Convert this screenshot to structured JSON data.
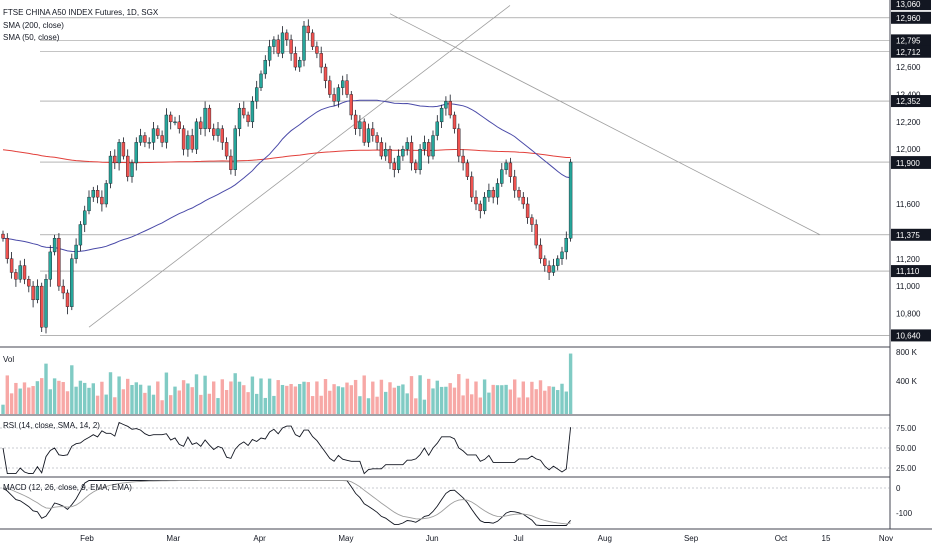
{
  "header": {
    "title": "FTSE CHINA A50 INDEX Futures, 1D, SGX",
    "sma200": "SMA (200, close)",
    "sma50": "SMA (50, close)"
  },
  "panels": {
    "vol_label": "Vol",
    "rsi_label": "RSI (14, close, SMA, 14, 2)",
    "macd_label": "MACD (12, 26, close, 9, EMA, EMA)"
  },
  "colors": {
    "up": "#26a69a",
    "down": "#ef5350",
    "vol_up": "#80cbc4",
    "vol_down": "#f7a8a6",
    "sma200": "#e2403b",
    "sma50": "#4a4aa8",
    "trend": "#9e9e9e"
  },
  "chart_data": {
    "type": "candlestick",
    "title": "FTSE CHINA A50 INDEX Futures, 1D, SGX",
    "x_ticks": [
      "Feb",
      "Mar",
      "Apr",
      "May",
      "Jun",
      "Jul",
      "Aug",
      "Sep",
      "Oct",
      "15",
      "Nov"
    ],
    "price_ticks": [
      "13,060",
      "12,960",
      "12,795",
      "12,712",
      "12,600",
      "12,400",
      "12,352",
      "12,200",
      "12,000",
      "11,906",
      "11,900",
      "11,600",
      "11,375",
      "11,200",
      "11,110",
      "11,000",
      "10,800",
      "10,640"
    ],
    "tags_highlighted": [
      "13,060",
      "12,960",
      "12,795",
      "12,712",
      "12,352",
      "11,906",
      "11,900",
      "11,375",
      "11,110",
      "10,640"
    ],
    "horizontal_levels": [
      12960,
      12795,
      12712,
      12352,
      11906,
      11375,
      11110,
      10640
    ],
    "price_range": [
      10570,
      13090
    ],
    "closes": [
      11350,
      11200,
      11100,
      11050,
      11150,
      11050,
      11000,
      10900,
      11000,
      10700,
      11050,
      11250,
      11350,
      11000,
      10950,
      10850,
      11200,
      11300,
      11450,
      11550,
      11650,
      11700,
      11650,
      11600,
      11750,
      11950,
      11900,
      12050,
      11950,
      11800,
      11900,
      12050,
      12100,
      12050,
      12050,
      12150,
      12100,
      12050,
      12250,
      12200,
      12200,
      12150,
      12000,
      12100,
      12000,
      12200,
      12150,
      12300,
      12150,
      12100,
      12150,
      12050,
      11950,
      11850,
      12150,
      12300,
      12250,
      12200,
      12350,
      12450,
      12550,
      12650,
      12750,
      12800,
      12700,
      12850,
      12800,
      12700,
      12600,
      12650,
      12900,
      12850,
      12750,
      12700,
      12600,
      12500,
      12400,
      12350,
      12450,
      12500,
      12400,
      12250,
      12150,
      12200,
      12050,
      12150,
      12100,
      12050,
      11950,
      12000,
      11900,
      11850,
      11950,
      12000,
      12050,
      11900,
      11850,
      12000,
      12050,
      11950,
      12100,
      12200,
      12300,
      12350,
      12250,
      12150,
      11950,
      11900,
      11800,
      11650,
      11600,
      11550,
      11650,
      11700,
      11650,
      11750,
      11850,
      11900,
      11800,
      11700,
      11650,
      11600,
      11500,
      11450,
      11300,
      11200,
      11150,
      11100,
      11150,
      11200,
      11250,
      11350,
      11906
    ],
    "sma200_label": "SMA (200, close)",
    "sma50_label": "SMA (50, close)",
    "volume_ticks": [
      "800 K",
      "400 K"
    ],
    "rsi_ticks": [
      "75.00",
      "50.00",
      "25.00"
    ],
    "macd_ticks": [
      "0",
      "-100"
    ]
  }
}
